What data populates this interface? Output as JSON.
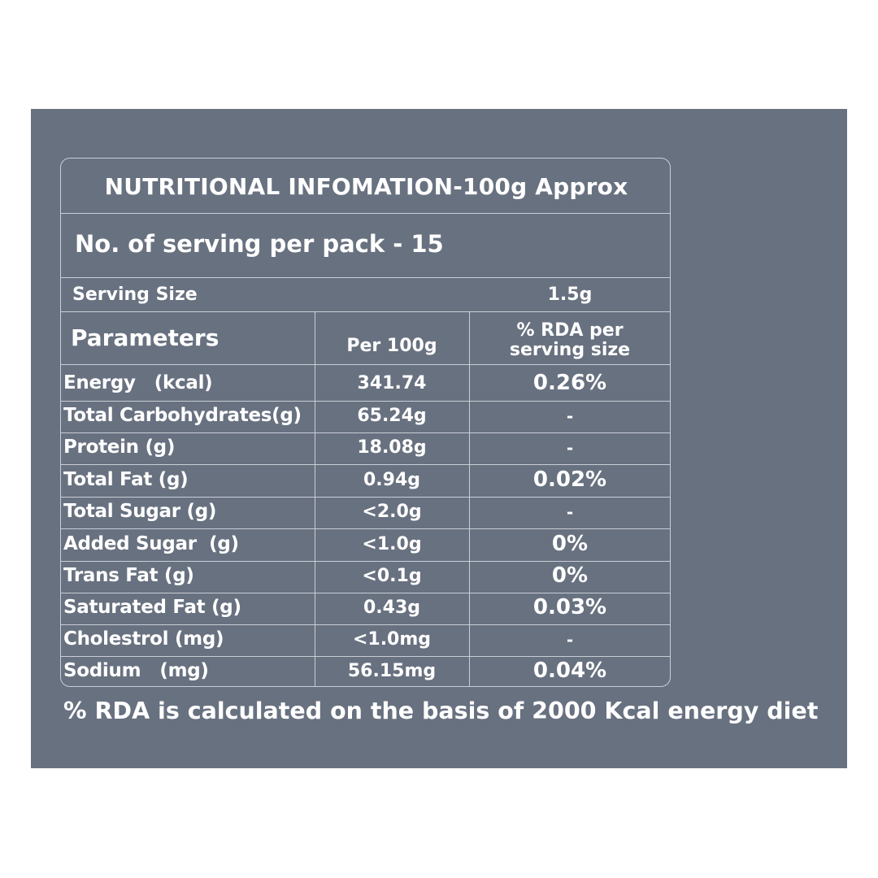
{
  "table": {
    "title": "NUTRITIONAL INFOMATION-100g Approx",
    "servings_per_pack": "No. of serving per pack - 15",
    "serving_size_label": "Serving Size",
    "serving_size_value": "1.5g",
    "headers": {
      "parameters": "Parameters",
      "per_100g": "Per 100g",
      "rda_line1": "% RDA per",
      "rda_line2": "serving size"
    },
    "rows": [
      {
        "name": "Energy   (kcal)",
        "per": "341.74",
        "rda": "0.26%"
      },
      {
        "name": "Total Carbohydrates(g)",
        "per": "65.24g",
        "rda": "-"
      },
      {
        "name": "Protein (g)",
        "per": "18.08g",
        "rda": "-"
      },
      {
        "name": "Total Fat (g)",
        "per": "0.94g",
        "rda": "0.02%"
      },
      {
        "name": "Total Sugar (g)",
        "per": "<2.0g",
        "rda": "-"
      },
      {
        "name": "Added Sugar  (g)",
        "per": "<1.0g",
        "rda": "0%"
      },
      {
        "name": "Trans Fat (g)",
        "per": "<0.1g",
        "rda": "0%"
      },
      {
        "name": "Saturated Fat (g)",
        "per": "0.43g",
        "rda": "0.03%"
      },
      {
        "name": "Cholestrol (mg)",
        "per": "<1.0mg",
        "rda": "-"
      },
      {
        "name": "Sodium   (mg)",
        "per": "56.15mg",
        "rda": "0.04%"
      }
    ]
  },
  "footnote": "% RDA is calculated on the basis of 2000 Kcal energy diet",
  "colors": {
    "panel": "#687180",
    "text": "#ffffff",
    "border": "#c9ced6"
  }
}
